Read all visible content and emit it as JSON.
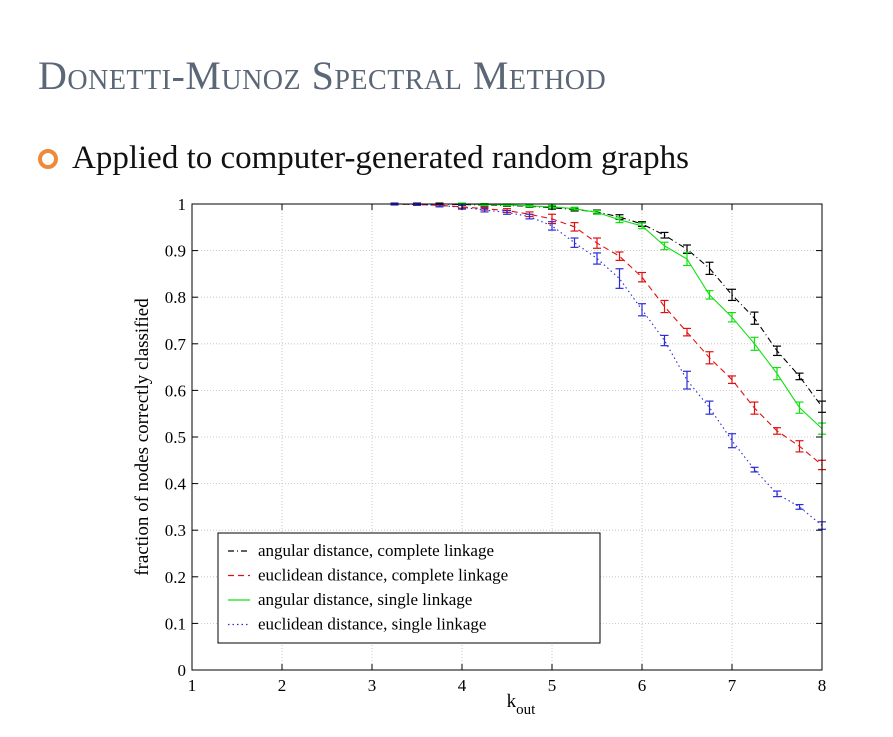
{
  "slide": {
    "title": "Donetti-Munoz Spectral Method",
    "bullet": "Applied to computer-generated random graphs"
  },
  "chart_data": {
    "type": "line",
    "title": "",
    "xlabel": "k",
    "xlabel_sub": "out",
    "ylabel": "fraction of nodes correctly classified",
    "xlim": [
      1,
      8
    ],
    "ylim": [
      0,
      1
    ],
    "xticks": [
      "1",
      "2",
      "3",
      "4",
      "5",
      "6",
      "7",
      "8"
    ],
    "yticks": [
      "0",
      "0.1",
      "0.2",
      "0.3",
      "0.4",
      "0.5",
      "0.6",
      "0.7",
      "0.8",
      "0.9",
      "1"
    ],
    "grid": true,
    "legend_position": "bottom-left",
    "x": [
      1,
      1.25,
      1.5,
      1.75,
      2,
      2.25,
      2.5,
      2.75,
      3,
      3.25,
      3.5,
      3.75,
      4,
      4.25,
      4.5,
      4.75,
      5,
      5.25,
      5.5,
      5.75,
      6,
      6.25,
      6.5,
      6.75,
      7,
      7.25,
      7.5,
      7.75,
      8
    ],
    "series": [
      {
        "name": "angular distance, complete linkage",
        "color": "#000000",
        "dash": "6,3,1,3",
        "values": [
          1,
          1,
          1,
          1,
          1,
          1,
          1,
          1,
          1,
          1,
          1,
          1,
          0.999,
          0.998,
          0.997,
          0.995,
          0.992,
          0.988,
          0.983,
          0.972,
          0.957,
          0.933,
          0.903,
          0.862,
          0.805,
          0.755,
          0.685,
          0.63,
          0.565
        ],
        "errors": [
          0,
          0,
          0,
          0,
          0,
          0,
          0,
          0,
          0,
          0.002,
          0.002,
          0.002,
          0.002,
          0.002,
          0.002,
          0.002,
          0.003,
          0.003,
          0.004,
          0.005,
          0.005,
          0.006,
          0.009,
          0.013,
          0.012,
          0.013,
          0.01,
          0.007,
          0.012
        ]
      },
      {
        "name": "euclidean distance, complete linkage",
        "color": "#e01010",
        "dash": "6,4",
        "values": [
          1,
          1,
          1,
          1,
          1,
          1,
          1,
          1,
          1,
          1,
          0.999,
          0.997,
          0.994,
          0.99,
          0.986,
          0.978,
          0.968,
          0.951,
          0.916,
          0.888,
          0.843,
          0.78,
          0.725,
          0.67,
          0.623,
          0.562,
          0.513,
          0.48,
          0.44
        ],
        "errors": [
          0,
          0,
          0,
          0,
          0,
          0,
          0,
          0,
          0,
          0.002,
          0.002,
          0.003,
          0.003,
          0.003,
          0.004,
          0.005,
          0.01,
          0.009,
          0.011,
          0.009,
          0.01,
          0.013,
          0.008,
          0.013,
          0.008,
          0.013,
          0.007,
          0.012,
          0.01
        ]
      },
      {
        "name": "angular distance, single linkage",
        "color": "#10e010",
        "dash": "",
        "values": [
          1,
          1,
          1,
          1,
          1,
          1,
          1,
          1,
          1,
          1,
          1,
          1,
          1,
          0.999,
          0.998,
          0.996,
          0.994,
          0.99,
          0.982,
          0.966,
          0.953,
          0.91,
          0.882,
          0.805,
          0.757,
          0.7,
          0.636,
          0.563,
          0.518
        ],
        "errors": [
          0,
          0,
          0,
          0,
          0,
          0,
          0,
          0,
          0,
          0,
          0,
          0,
          0.002,
          0.002,
          0.002,
          0.002,
          0.003,
          0.003,
          0.004,
          0.006,
          0.006,
          0.008,
          0.014,
          0.009,
          0.01,
          0.014,
          0.013,
          0.012,
          0.012
        ]
      },
      {
        "name": "euclidean distance, single linkage",
        "color": "#2b2bd8",
        "dash": "1.5,3",
        "values": [
          1,
          1,
          1,
          1,
          1,
          1,
          1,
          1,
          1,
          1,
          0.999,
          0.997,
          0.993,
          0.987,
          0.982,
          0.973,
          0.953,
          0.917,
          0.883,
          0.84,
          0.773,
          0.707,
          0.622,
          0.563,
          0.492,
          0.43,
          0.378,
          0.35,
          0.31
        ],
        "errors": [
          0,
          0,
          0,
          0,
          0,
          0,
          0,
          0,
          0,
          0.002,
          0.002,
          0.003,
          0.004,
          0.004,
          0.004,
          0.005,
          0.009,
          0.01,
          0.012,
          0.021,
          0.013,
          0.011,
          0.019,
          0.014,
          0.015,
          0.005,
          0.006,
          0.005,
          0.008
        ]
      }
    ]
  }
}
